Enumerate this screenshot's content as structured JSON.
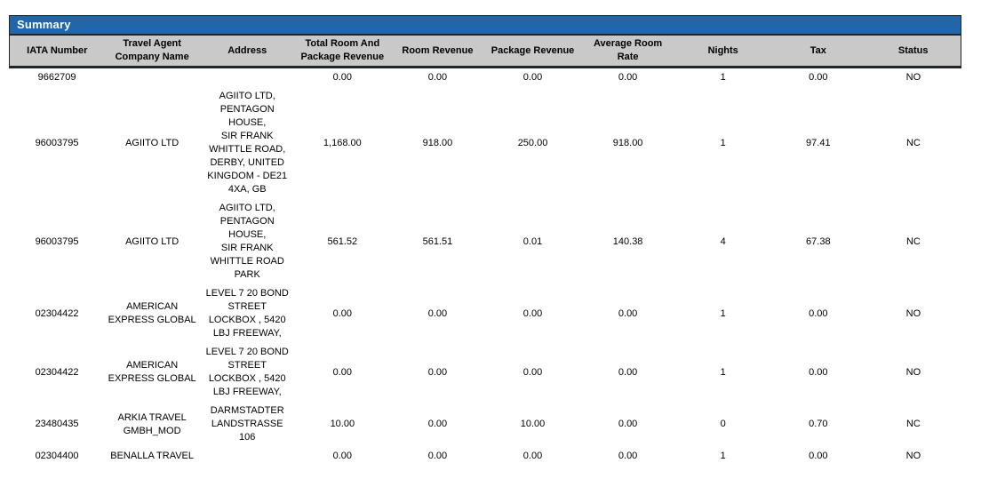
{
  "title": "Summary",
  "colors": {
    "title_bar_bg": "#2066A8",
    "title_text": "#FFFFFF",
    "header_bg": "#C9C9C9",
    "border_dark": "#20242B",
    "body_bg": "#FFFFFF",
    "body_text": "#000000"
  },
  "table": {
    "columns": [
      {
        "id": "iata_number",
        "label": "IATA Number"
      },
      {
        "id": "company_name",
        "label": "Travel Agent\nCompany Name"
      },
      {
        "id": "address",
        "label": "Address"
      },
      {
        "id": "total_revenue",
        "label": "Total Room And\nPackage Revenue"
      },
      {
        "id": "room_revenue",
        "label": "Room Revenue"
      },
      {
        "id": "package_revenue",
        "label": "Package Revenue"
      },
      {
        "id": "avg_room_rate",
        "label": "Average Room\nRate"
      },
      {
        "id": "nights",
        "label": "Nights"
      },
      {
        "id": "tax",
        "label": "Tax"
      },
      {
        "id": "status",
        "label": "Status"
      }
    ],
    "rows": [
      {
        "iata_number": "9662709",
        "company_name": "",
        "address": "",
        "total_revenue": "0.00",
        "room_revenue": "0.00",
        "package_revenue": "0.00",
        "avg_room_rate": "0.00",
        "nights": "1",
        "tax": "0.00",
        "status": "NO"
      },
      {
        "iata_number": "96003795",
        "company_name": "AGIITO LTD",
        "address": "AGIITO LTD,\nPENTAGON\nHOUSE,\nSIR FRANK\nWHITTLE ROAD,\nDERBY, UNITED\nKINGDOM - DE21\n4XA, GB",
        "total_revenue": "1,168.00",
        "room_revenue": "918.00",
        "package_revenue": "250.00",
        "avg_room_rate": "918.00",
        "nights": "1",
        "tax": "97.41",
        "status": "NC"
      },
      {
        "iata_number": "96003795",
        "company_name": "AGIITO LTD",
        "address": "AGIITO LTD,\nPENTAGON\nHOUSE,\nSIR FRANK\nWHITTLE ROAD\nPARK",
        "total_revenue": "561.52",
        "room_revenue": "561.51",
        "package_revenue": "0.01",
        "avg_room_rate": "140.38",
        "nights": "4",
        "tax": "67.38",
        "status": "NC"
      },
      {
        "iata_number": "02304422",
        "company_name": "AMERICAN EXPRESS GLOBAL",
        "address": "LEVEL 7 20 BOND\nSTREET\nLOCKBOX , 5420\nLBJ FREEWAY,",
        "total_revenue": "0.00",
        "room_revenue": "0.00",
        "package_revenue": "0.00",
        "avg_room_rate": "0.00",
        "nights": "1",
        "tax": "0.00",
        "status": "NO"
      },
      {
        "iata_number": "02304422",
        "company_name": "AMERICAN EXPRESS GLOBAL",
        "address": "LEVEL 7 20 BOND\nSTREET\nLOCKBOX , 5420\nLBJ FREEWAY,",
        "total_revenue": "0.00",
        "room_revenue": "0.00",
        "package_revenue": "0.00",
        "avg_room_rate": "0.00",
        "nights": "1",
        "tax": "0.00",
        "status": "NO"
      },
      {
        "iata_number": "23480435",
        "company_name": "ARKIA TRAVEL GMBH_MOD",
        "address": "DARMSTADTER\nLANDSTRASSE\n106",
        "total_revenue": "10.00",
        "room_revenue": "0.00",
        "package_revenue": "10.00",
        "avg_room_rate": "0.00",
        "nights": "0",
        "tax": "0.70",
        "status": "NC"
      },
      {
        "iata_number": "02304400",
        "company_name": "BENALLA TRAVEL",
        "address": "",
        "total_revenue": "0.00",
        "room_revenue": "0.00",
        "package_revenue": "0.00",
        "avg_room_rate": "0.00",
        "nights": "1",
        "tax": "0.00",
        "status": "NO"
      }
    ]
  }
}
